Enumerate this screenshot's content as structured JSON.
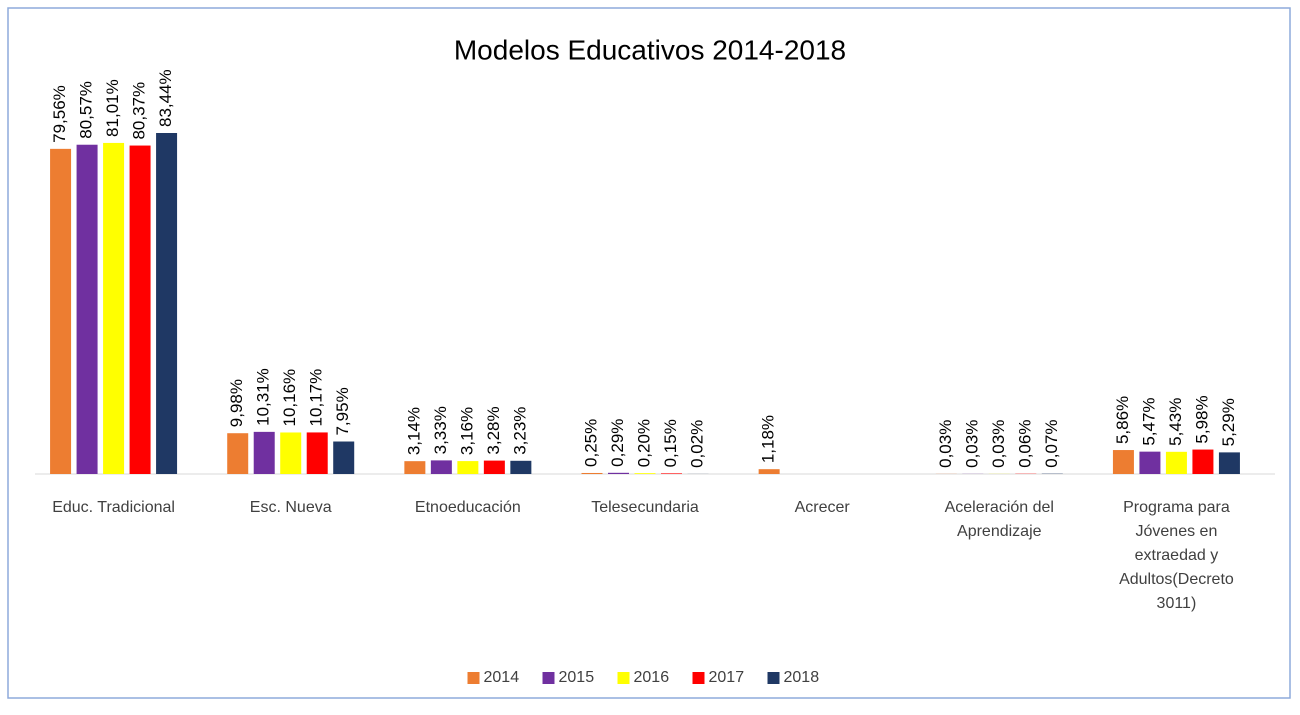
{
  "chart_data": {
    "type": "bar",
    "title": "Modelos Educativos 2014-2018",
    "categories": [
      "Educ. Tradicional",
      "Esc. Nueva",
      "Etnoeducación",
      "Telesecundaria",
      "Acrecer",
      "Aceleración del Aprendizaje",
      "Programa para Jóvenes en extraedad y Adultos(Decreto 3011)"
    ],
    "series": [
      {
        "name": "2014",
        "color": "#ed7d31",
        "values": [
          79.56,
          9.98,
          3.14,
          0.25,
          1.18,
          0.03,
          5.86
        ],
        "value_labels": [
          "79,56%",
          "9,98%",
          "3,14%",
          "0,25%",
          "1,18%",
          "0,03%",
          "5,86%"
        ]
      },
      {
        "name": "2015",
        "color": "#7030a0",
        "values": [
          80.57,
          10.31,
          3.33,
          0.29,
          null,
          0.03,
          5.47
        ],
        "value_labels": [
          "80,57%",
          "10,31%",
          "3,33%",
          "0,29%",
          null,
          "0,03%",
          "5,47%"
        ]
      },
      {
        "name": "2016",
        "color": "#ffff00",
        "values": [
          81.01,
          10.16,
          3.16,
          0.2,
          null,
          0.03,
          5.43
        ],
        "value_labels": [
          "81,01%",
          "10,16%",
          "3,16%",
          "0,20%",
          null,
          "0,03%",
          "5,43%"
        ]
      },
      {
        "name": "2017",
        "color": "#ff0000",
        "values": [
          80.37,
          10.17,
          3.28,
          0.15,
          null,
          0.06,
          5.98
        ],
        "value_labels": [
          "80,37%",
          "10,17%",
          "3,28%",
          "0,15%",
          null,
          "0,06%",
          "5,98%"
        ]
      },
      {
        "name": "2018",
        "color": "#1f3864",
        "values": [
          83.44,
          7.95,
          3.23,
          0.02,
          null,
          0.07,
          5.29
        ],
        "value_labels": [
          "83,44%",
          "7,95%",
          "3,23%",
          "0,02%",
          null,
          "0,07%",
          "5,29%"
        ]
      }
    ],
    "legend": "bottom"
  }
}
